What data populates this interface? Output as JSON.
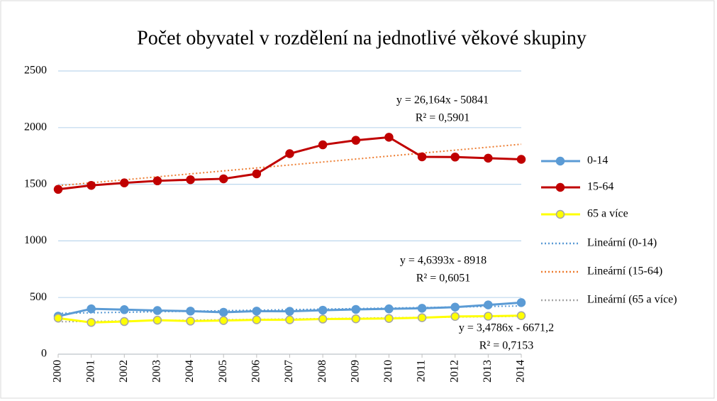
{
  "chart_data": {
    "type": "line",
    "title": "Počet obyvatel v rozdělení na jednotlivé věkové skupiny",
    "x": [
      "2000",
      "2001",
      "2002",
      "2003",
      "2004",
      "2005",
      "2006",
      "2007",
      "2008",
      "2009",
      "2010",
      "2011",
      "2012",
      "2013",
      "2014"
    ],
    "ylim": [
      0,
      2500
    ],
    "yticks": [
      0,
      500,
      1000,
      1500,
      2000,
      2500
    ],
    "grid": true,
    "legend": "right",
    "series": [
      {
        "name": "0-14",
        "color": "#5b9bd5",
        "marker": true,
        "values": [
          335,
          400,
          393,
          385,
          380,
          370,
          380,
          378,
          388,
          395,
          400,
          405,
          415,
          435,
          455
        ]
      },
      {
        "name": "15-64",
        "color": "#c00000",
        "marker": true,
        "values": [
          1455,
          1490,
          1512,
          1530,
          1540,
          1548,
          1592,
          1770,
          1848,
          1888,
          1915,
          1742,
          1740,
          1730,
          1720
        ]
      },
      {
        "name": "65 a více",
        "color": "#ffff00",
        "marker": true,
        "values": [
          318,
          280,
          288,
          300,
          292,
          297,
          303,
          303,
          310,
          312,
          315,
          322,
          333,
          335,
          340
        ]
      },
      {
        "name": "Lineární (0-14)",
        "color": "#5b9bd5",
        "trendline": true,
        "values": [
          360.6,
          365.2,
          369.9,
          374.5,
          379.2,
          383.8,
          388.4,
          393.1,
          397.7,
          402.4,
          407,
          411.6,
          416.3,
          420.9,
          425.6
        ]
      },
      {
        "name": "Lineární (15-64)",
        "color": "#ed7d31",
        "trendline": true,
        "values": [
          1487,
          1513.2,
          1539.3,
          1565.5,
          1591.7,
          1617.8,
          1644,
          1670.1,
          1696.3,
          1722.5,
          1748.6,
          1774.8,
          1801,
          1827.1,
          1853.3
        ]
      },
      {
        "name": "Lineární (65 a více)",
        "color": "#a5a5a5",
        "trendline": true,
        "values": [
          286,
          289.5,
          293,
          296.4,
          299.9,
          303.4,
          306.9,
          310.4,
          313.8,
          317.3,
          320.8,
          324.3,
          327.7,
          331.2,
          334.7
        ]
      }
    ],
    "annotations": [
      {
        "lines": [
          "y = 26,164x - 50841",
          "R² = 0,5901"
        ]
      },
      {
        "lines": [
          "y = 4,6393x - 8918",
          "R² = 0,6051"
        ]
      },
      {
        "lines": [
          "y = 3,4786x - 6671,2",
          "R² = 0,7153"
        ]
      }
    ]
  }
}
